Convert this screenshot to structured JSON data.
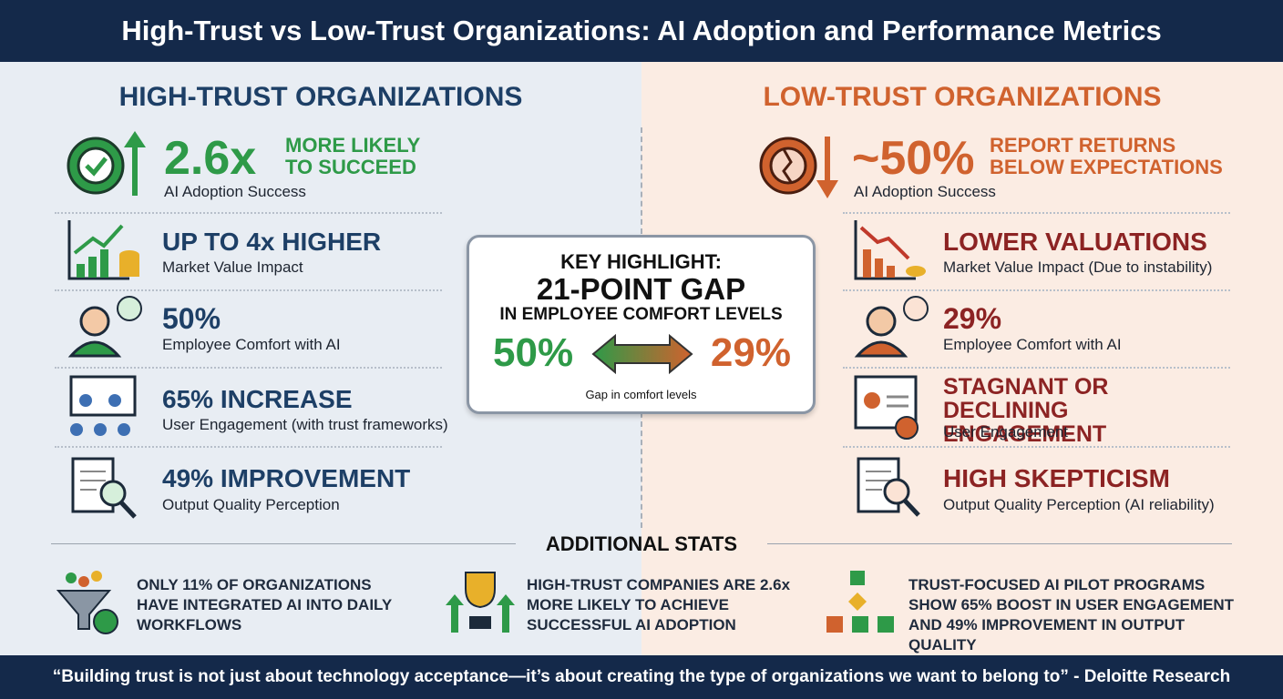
{
  "header": {
    "title": "High-Trust vs Low-Trust Organizations: AI Adoption and Performance Metrics"
  },
  "high_trust": {
    "heading": "HIGH-TRUST ORGANIZATIONS",
    "items": [
      {
        "stat": "2.6x",
        "headline": "MORE LIKELY TO SUCCEED",
        "label": "AI Adoption Success"
      },
      {
        "headline": "UP TO 4x HIGHER",
        "label": "Market Value Impact"
      },
      {
        "headline": "50%",
        "label": "Employee Comfort with AI"
      },
      {
        "headline": "65% INCREASE",
        "label": "User Engagement (with trust frameworks)"
      },
      {
        "headline": "49% IMPROVEMENT",
        "label": "Output Quality Perception"
      }
    ]
  },
  "low_trust": {
    "heading": "LOW-TRUST ORGANIZATIONS",
    "items": [
      {
        "stat": "~50%",
        "headline": "REPORT RETURNS BELOW EXPECTATIONS",
        "label": "AI Adoption Success"
      },
      {
        "headline": "LOWER VALUATIONS",
        "label": "Market Value Impact (Due to instability)"
      },
      {
        "headline": "29%",
        "label": "Employee Comfort with AI"
      },
      {
        "headline": "STAGNANT OR DECLINING ENGAGEMENT",
        "label": "User Engagement"
      },
      {
        "headline": "HIGH SKEPTICISM",
        "label": "Output Quality Perception (AI reliability)"
      }
    ]
  },
  "key_highlight": {
    "title": "KEY HIGHLIGHT:",
    "gap": "21-POINT GAP",
    "subtitle": "IN EMPLOYEE COMFORT LEVELS",
    "left": "50%",
    "right": "29%",
    "caption": "Gap in comfort levels"
  },
  "additional_stats": {
    "heading": "ADDITIONAL STATS",
    "items": [
      "ONLY 11% OF ORGANIZATIONS HAVE INTEGRATED AI INTO DAILY WORKFLOWS",
      "HIGH-TRUST COMPANIES ARE 2.6x MORE LIKELY TO ACHIEVE SUCCESSFUL AI ADOPTION",
      "TRUST-FOCUSED AI PILOT PROGRAMS SHOW 65% BOOST IN USER ENGAGEMENT AND 49% IMPROVEMENT IN OUTPUT QUALITY"
    ]
  },
  "footer": {
    "quote": "“Building trust is not just about technology acceptance—it’s about creating the type of organizations we want to belong to” - Deloitte Research"
  }
}
